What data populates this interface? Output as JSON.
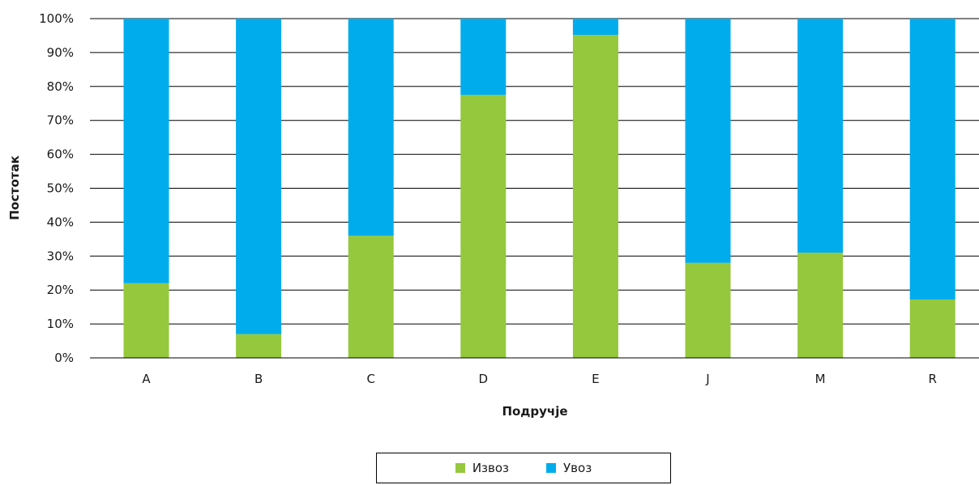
{
  "chart_data": {
    "type": "bar",
    "stacked": true,
    "categories": [
      "A",
      "B",
      "C",
      "D",
      "E",
      "J",
      "M",
      "R"
    ],
    "series": [
      {
        "name": "Извоз",
        "color": "#95c83d",
        "values": [
          22,
          7,
          36,
          77.5,
          95.2,
          28,
          31,
          17.2
        ]
      },
      {
        "name": "Увоз",
        "color": "#00acec",
        "values": [
          78,
          93,
          64,
          22.5,
          4.8,
          72,
          69,
          82.8
        ]
      }
    ],
    "xlabel": "Подручје",
    "ylabel": "Постотак",
    "ylim": [
      0,
      100
    ],
    "yticks": [
      "0%",
      "10%",
      "20%",
      "30%",
      "40%",
      "50%",
      "60%",
      "70%",
      "80%",
      "90%",
      "100%"
    ],
    "grid": true,
    "legend_position": "bottom"
  }
}
